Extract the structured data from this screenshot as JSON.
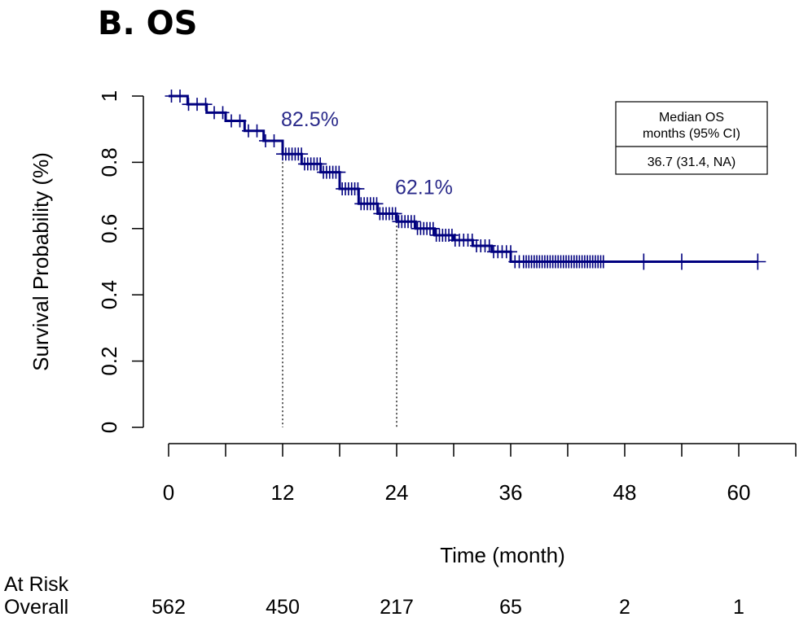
{
  "panel_title": "B. OS",
  "colors": {
    "curve": "#00007f",
    "axis": "#000000",
    "annotation": "#2a2a8a"
  },
  "legend": {
    "header_line1": "Median OS",
    "header_line2": "months (95% CI)",
    "value": "36.7 (31.4, NA)"
  },
  "at_risk": {
    "title": "At Risk",
    "group_label": "Overall",
    "times": [
      0,
      12,
      24,
      36,
      48,
      60
    ],
    "counts": [
      "562",
      "450",
      "217",
      "65",
      "2",
      "1"
    ]
  },
  "chart_data": {
    "type": "line",
    "ylabel": "Survival Probability (%)",
    "xlabel": "Time (month)",
    "xlim": [
      0,
      66
    ],
    "ylim": [
      0,
      1
    ],
    "x_ticks": [
      0,
      12,
      24,
      36,
      48,
      60
    ],
    "x_tick_labels": [
      "0",
      "12",
      "24",
      "36",
      "48",
      "60"
    ],
    "y_ticks": [
      0,
      0.2,
      0.4,
      0.6,
      0.8,
      1
    ],
    "y_tick_labels": [
      "0",
      "0.2",
      "0.4",
      "0.6",
      "0.8",
      "1"
    ],
    "grid": false,
    "legend_position": "top-right",
    "series": [
      {
        "x": [
          0,
          2,
          4,
          6,
          8,
          10,
          12,
          14,
          16,
          18,
          20,
          22,
          24,
          26,
          28,
          30,
          32,
          34,
          36,
          40,
          45,
          50,
          55,
          62
        ],
        "y": [
          1.0,
          0.975,
          0.95,
          0.925,
          0.895,
          0.865,
          0.825,
          0.795,
          0.77,
          0.72,
          0.675,
          0.645,
          0.621,
          0.6,
          0.58,
          0.565,
          0.548,
          0.53,
          0.5,
          0.5,
          0.5,
          0.5,
          0.5,
          0.5
        ]
      }
    ],
    "annotations": [
      {
        "x": 12,
        "y": 0.825,
        "label": "82.5%"
      },
      {
        "x": 24,
        "y": 0.621,
        "label": "62.1%"
      }
    ]
  }
}
